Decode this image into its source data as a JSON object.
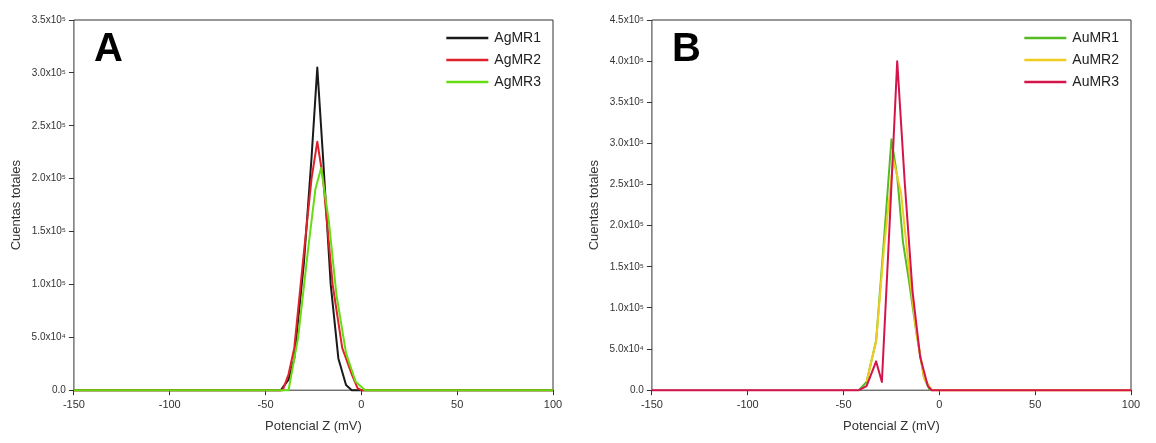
{
  "chart_data": [
    {
      "type": "line",
      "xlabel": "Potencial Z (mV)",
      "ylabel": "Cuentas totales",
      "annotations": [
        "A"
      ],
      "legend": "top right",
      "grid": false,
      "marker": "none",
      "line_style": "solid",
      "xlim": [
        -150,
        100
      ],
      "xticks": [
        -150,
        -100,
        -50,
        0,
        50,
        100
      ],
      "ylim": [
        0,
        350000
      ],
      "yticks": [
        {
          "value": 0,
          "label": "0.0"
        },
        {
          "value": 50000,
          "label": "5.0x10⁴"
        },
        {
          "value": 100000,
          "label": "1.0x10⁵"
        },
        {
          "value": 150000,
          "label": "1.5x10⁵"
        },
        {
          "value": 200000,
          "label": "2.0x10⁵"
        },
        {
          "value": 250000,
          "label": "2.5x10⁵"
        },
        {
          "value": 300000,
          "label": "3.0x10⁵"
        },
        {
          "value": 350000,
          "label": "3.5x10⁵"
        }
      ],
      "series": [
        {
          "name": "AgMR1",
          "color": "#1a1a1a",
          "x": [
            -150,
            -42,
            -38,
            -35,
            -30,
            -26,
            -23,
            -20,
            -16,
            -12,
            -8,
            -5,
            100
          ],
          "values": [
            0,
            0,
            10000,
            30000,
            120000,
            220000,
            305000,
            220000,
            100000,
            30000,
            5000,
            0,
            0
          ]
        },
        {
          "name": "AgMR2",
          "color": "#e0202a",
          "x": [
            -150,
            -41,
            -38,
            -35,
            -30,
            -26,
            -23,
            -20,
            -15,
            -10,
            -5,
            -2,
            0,
            100
          ],
          "values": [
            0,
            0,
            15000,
            40000,
            130000,
            200000,
            235000,
            200000,
            100000,
            40000,
            15000,
            2000,
            0,
            0
          ]
        },
        {
          "name": "AgMR3",
          "color": "#66dd11",
          "x": [
            -150,
            -38,
            -33,
            -28,
            -24,
            -21,
            -17,
            -13,
            -8,
            -3,
            2,
            100
          ],
          "values": [
            0,
            0,
            50000,
            130000,
            190000,
            210000,
            160000,
            90000,
            35000,
            8000,
            0,
            0
          ]
        }
      ]
    },
    {
      "type": "line",
      "xlabel": "Potencial Z (mV)",
      "ylabel": "Cuentas totales",
      "annotations": [
        "B"
      ],
      "legend": "top right",
      "grid": false,
      "marker": "none",
      "line_style": "solid",
      "xlim": [
        -150,
        100
      ],
      "xticks": [
        -150,
        -100,
        -50,
        0,
        50,
        100
      ],
      "ylim": [
        0,
        450000
      ],
      "yticks": [
        {
          "value": 0,
          "label": "0.0"
        },
        {
          "value": 50000,
          "label": "5.0x10⁴"
        },
        {
          "value": 100000,
          "label": "1.0x10⁵"
        },
        {
          "value": 150000,
          "label": "1.5x10⁵"
        },
        {
          "value": 200000,
          "label": "2.0x10⁵"
        },
        {
          "value": 250000,
          "label": "2.5x10⁵"
        },
        {
          "value": 300000,
          "label": "3.0x10⁵"
        },
        {
          "value": 350000,
          "label": "3.5x10⁵"
        },
        {
          "value": 400000,
          "label": "4.0x10⁵"
        },
        {
          "value": 450000,
          "label": "4.5x10⁵"
        }
      ],
      "series": [
        {
          "name": "AuMR1",
          "color": "#55bb22",
          "x": [
            -42,
            -38,
            -33,
            -29,
            -25,
            -22,
            -19,
            -16,
            -12,
            -8,
            -5
          ],
          "values": [
            0,
            10000,
            60000,
            180000,
            305000,
            260000,
            180000,
            135000,
            70000,
            15000,
            0
          ]
        },
        {
          "name": "AuMR2",
          "color": "#f0cc20",
          "x": [
            -38,
            -33,
            -29,
            -24,
            -20,
            -16,
            -12,
            -8,
            -4,
            100
          ],
          "values": [
            10000,
            60000,
            170000,
            280000,
            240000,
            150000,
            70000,
            15000,
            0,
            0
          ]
        },
        {
          "name": "AuMR3",
          "color": "#d4144a",
          "x": [
            -150,
            -42,
            -38,
            -33,
            -30,
            -26,
            -22,
            -18,
            -14,
            -10,
            -6,
            -4,
            100
          ],
          "values": [
            0,
            0,
            5000,
            35000,
            10000,
            200000,
            400000,
            250000,
            120000,
            40000,
            5000,
            0,
            0
          ]
        }
      ]
    }
  ]
}
